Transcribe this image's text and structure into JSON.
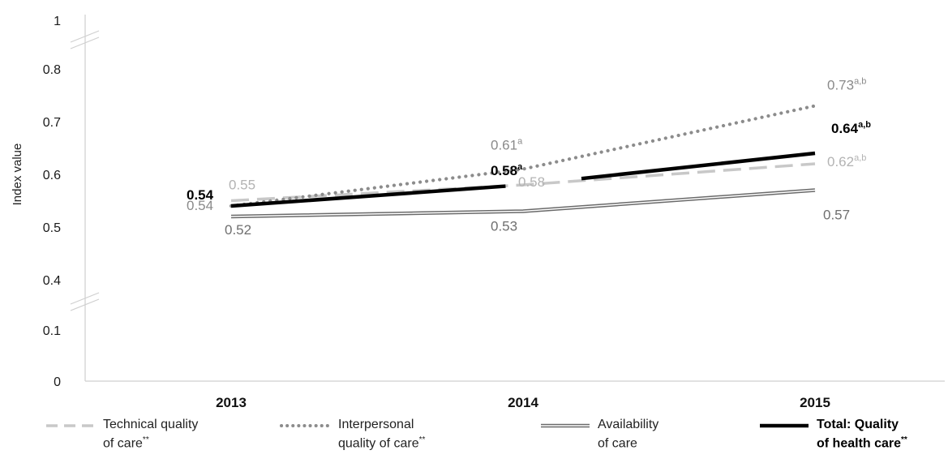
{
  "chart_data": {
    "type": "line",
    "ylabel": "Index value",
    "categories": [
      "2013",
      "2014",
      "2015"
    ],
    "y_ticks": [
      "1",
      "0.8",
      "0.7",
      "0.6",
      "0.5",
      "0.4",
      "0.1",
      "0"
    ],
    "axis_breaks": [
      "between 0.8 and 1",
      "between 0.1 and 0.4"
    ],
    "grid": false,
    "series": [
      {
        "key": "technical",
        "name_line1": "Technical quality",
        "name_line2": "of care",
        "name_suffix": "**",
        "values": [
          0.55,
          0.58,
          0.62
        ],
        "labels": [
          {
            "text": "0.55",
            "sup": ""
          },
          {
            "text": "0.58",
            "sup": ""
          },
          {
            "text": "0.62",
            "sup": "a,b"
          }
        ],
        "color": "#c8c8c8",
        "style": "dashed"
      },
      {
        "key": "interpersonal",
        "name_line1": "Interpersonal",
        "name_line2": "quality of care",
        "name_suffix": "**",
        "values": [
          0.54,
          0.61,
          0.73
        ],
        "labels": [
          {
            "text": "0.54",
            "sup": ""
          },
          {
            "text": "0.61",
            "sup": "a"
          },
          {
            "text": "0.73",
            "sup": "a,b"
          }
        ],
        "color": "#8c8c8c",
        "style": "dotted"
      },
      {
        "key": "availability",
        "name_line1": "Availability",
        "name_line2": "of care",
        "name_suffix": "",
        "values": [
          0.52,
          0.53,
          0.57
        ],
        "labels": [
          {
            "text": "0.52",
            "sup": ""
          },
          {
            "text": "0.53",
            "sup": ""
          },
          {
            "text": "0.57",
            "sup": ""
          }
        ],
        "color": "#6a6a6a",
        "style": "double"
      },
      {
        "key": "total",
        "name_line1": "Total: Quality",
        "name_line2": "of health care",
        "name_suffix": "**",
        "values": [
          0.54,
          0.58,
          0.64
        ],
        "labels": [
          {
            "text": "0.54",
            "sup": ""
          },
          {
            "text": "0.58",
            "sup": "a"
          },
          {
            "text": "0.64",
            "sup": "a,b"
          }
        ],
        "color": "#000000",
        "style": "solid-bold"
      }
    ]
  }
}
